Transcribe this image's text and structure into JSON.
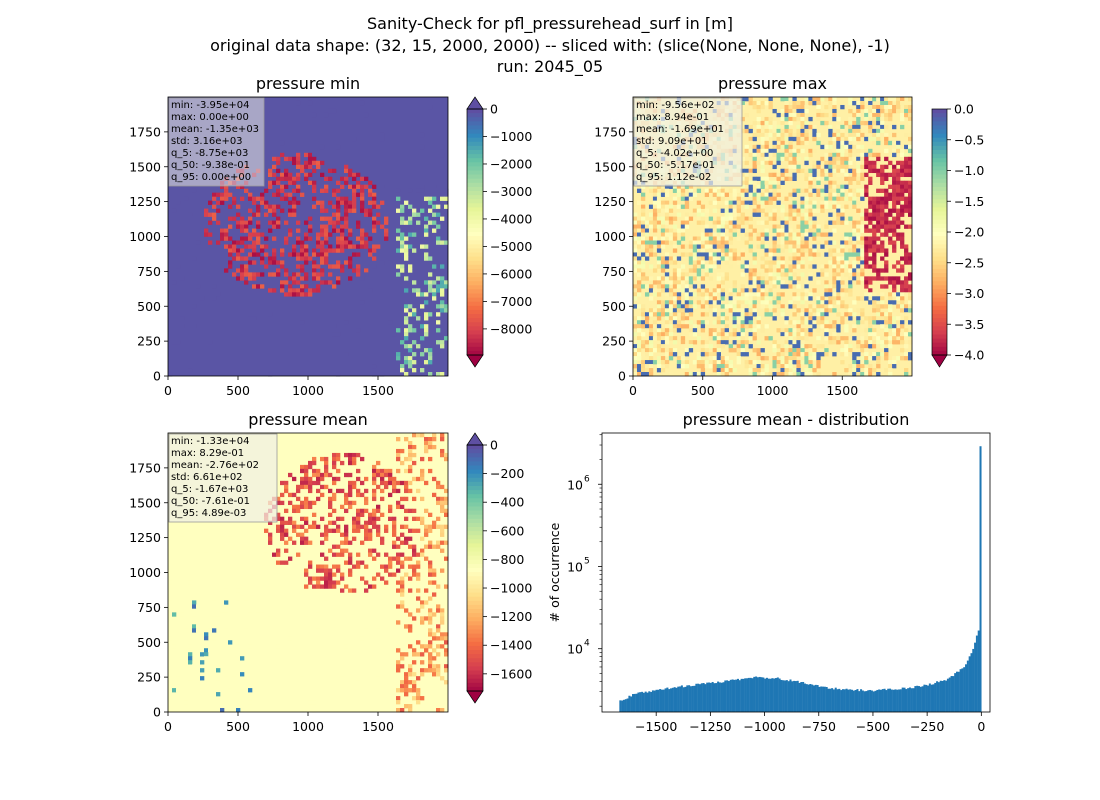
{
  "figure": {
    "title_line1": "Sanity-Check for pfl_pressurehead_surf in [m]",
    "title_line2": "original data shape: (32, 15, 2000, 2000) -- sliced with: (slice(None, None, None), -1)",
    "title_line3": "run: 2045_05"
  },
  "chart_data": [
    {
      "type": "heatmap",
      "title": "pressure min",
      "x_ticks": [
        "0",
        "500",
        "1000",
        "1500"
      ],
      "y_ticks": [
        "0",
        "250",
        "500",
        "750",
        "1000",
        "1250",
        "1500",
        "1750"
      ],
      "xlim": [
        0,
        2000
      ],
      "ylim": [
        0,
        2000
      ],
      "colormap": "Spectral",
      "colorbar": {
        "extend": "both",
        "range": [
          -8950,
          0
        ],
        "ticks": [
          "0",
          "−1000",
          "−2000",
          "−3000",
          "−4000",
          "−5000",
          "−6000",
          "−7000",
          "−8000"
        ]
      },
      "stats_box": [
        "min: -3.95e+04",
        "max: 0.00e+00",
        "mean: -1.35e+03",
        "std: 3.16e+03",
        "q_5: -8.75e+03",
        "q_50: -9.38e-01",
        "q_95: 0.00e+00"
      ]
    },
    {
      "type": "heatmap",
      "title": "pressure max",
      "x_ticks": [
        "0",
        "500",
        "1000",
        "1500"
      ],
      "y_ticks": [
        "0",
        "250",
        "500",
        "750",
        "1000",
        "1250",
        "1500",
        "1750"
      ],
      "xlim": [
        0,
        2000
      ],
      "ylim": [
        0,
        2000
      ],
      "colormap": "Spectral",
      "colorbar": {
        "extend": "min",
        "range": [
          -4.0,
          0.0
        ],
        "ticks": [
          "0.0",
          "−0.5",
          "−1.0",
          "−1.5",
          "−2.0",
          "−2.5",
          "−3.0",
          "−3.5",
          "−4.0"
        ]
      },
      "stats_box": [
        "min: -9.56e+02",
        "max: 8.94e-01",
        "mean: -1.69e+01",
        "std: 9.09e+01",
        "q_5: -4.02e+00",
        "q_50: -5.17e-01",
        "q_95: 1.12e-02"
      ]
    },
    {
      "type": "heatmap",
      "title": "pressure mean",
      "x_ticks": [
        "0",
        "500",
        "1000",
        "1500"
      ],
      "y_ticks": [
        "0",
        "250",
        "500",
        "750",
        "1000",
        "1250",
        "1500",
        "1750"
      ],
      "xlim": [
        0,
        2000
      ],
      "ylim": [
        0,
        2000
      ],
      "colormap": "Spectral",
      "colorbar": {
        "extend": "both",
        "range": [
          -1720,
          0
        ],
        "ticks": [
          "0",
          "−200",
          "−400",
          "−600",
          "−800",
          "−1000",
          "−1200",
          "−1400",
          "−1600"
        ]
      },
      "stats_box": [
        "min: -1.33e+04",
        "max: 8.29e-01",
        "mean: -2.76e+02",
        "std: 6.61e+02",
        "q_5: -1.67e+03",
        "q_50: -7.61e-01",
        "q_95: 4.89e-03"
      ]
    },
    {
      "type": "bar",
      "title": "pressure mean - distribution",
      "ylabel": "# of occurrence",
      "yscale": "log",
      "xlim": [
        -1750,
        40
      ],
      "ylim": [
        1700,
        4200000
      ],
      "x_ticks": [
        "−1500",
        "−1250",
        "−1000",
        "−750",
        "−500",
        "−250",
        "0"
      ],
      "y_ticks": [
        {
          "base": "10",
          "exp": "4"
        },
        {
          "base": "10",
          "exp": "5"
        },
        {
          "base": "10",
          "exp": "6"
        }
      ],
      "bar_color": "#1f77b4",
      "bin_range": [
        -1670,
        0
      ],
      "bin_count": 200,
      "profile": [
        {
          "x": -1670,
          "y": 2300
        },
        {
          "x": -1600,
          "y": 2800
        },
        {
          "x": -1450,
          "y": 3300
        },
        {
          "x": -1300,
          "y": 3700
        },
        {
          "x": -1150,
          "y": 4100
        },
        {
          "x": -1050,
          "y": 4500
        },
        {
          "x": -950,
          "y": 4400
        },
        {
          "x": -850,
          "y": 4000
        },
        {
          "x": -750,
          "y": 3500
        },
        {
          "x": -650,
          "y": 3200
        },
        {
          "x": -500,
          "y": 3100
        },
        {
          "x": -350,
          "y": 3300
        },
        {
          "x": -250,
          "y": 3600
        },
        {
          "x": -150,
          "y": 4300
        },
        {
          "x": -80,
          "y": 6000
        },
        {
          "x": -40,
          "y": 9500
        },
        {
          "x": -15,
          "y": 16000
        },
        {
          "x": -8,
          "y": 17500
        }
      ],
      "spike": {
        "x": -2,
        "y": 2900000
      }
    }
  ]
}
